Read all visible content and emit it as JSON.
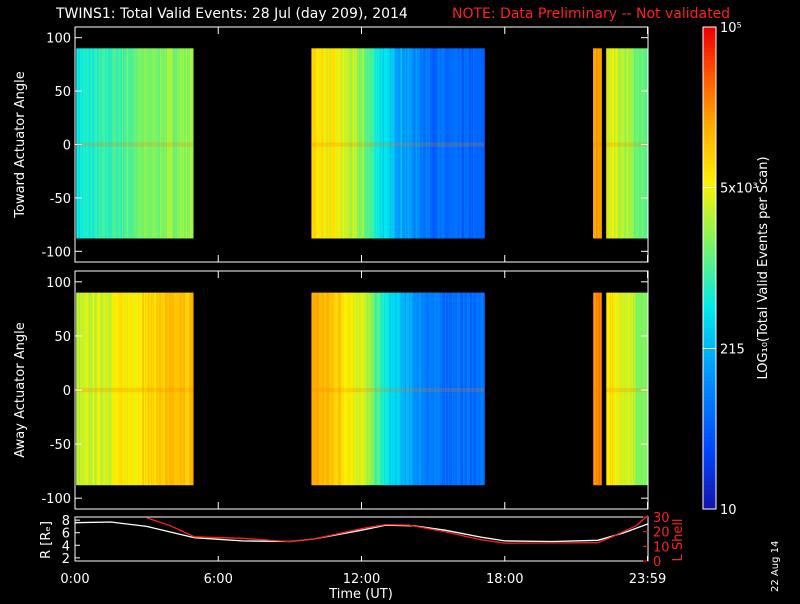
{
  "header": {
    "title": "TWINS1: Total Valid Events: 28 Jul (day 209), 2014",
    "note": "NOTE: Data Preliminary -- Not validated"
  },
  "stamp": "22 Aug 14",
  "chart_data": {
    "type": "heatmap",
    "x_axis": {
      "label": "Time (UT)",
      "range_hours": [
        0,
        24
      ],
      "tick_labels": [
        "0:00",
        "6:00",
        "12:00",
        "18:00",
        "23:59"
      ],
      "tick_values": [
        0,
        6,
        12,
        18,
        23.98
      ]
    },
    "data_segments_hours": [
      [
        0.05,
        4.95
      ],
      [
        9.9,
        17.15
      ],
      [
        21.7,
        22.05
      ],
      [
        22.25,
        24
      ]
    ],
    "panels": [
      {
        "name": "toward",
        "ylabel": "Toward Actuator Angle",
        "ylim": [
          -110,
          110
        ],
        "data_yrange": [
          -88,
          90
        ],
        "yticks": [
          100,
          50,
          0,
          -50,
          -100
        ],
        "ytick_labels": [
          "100",
          "50",
          "0",
          "-50",
          "-100"
        ],
        "level_profile_hours": [
          [
            0,
            0.42
          ],
          [
            1.5,
            0.48
          ],
          [
            3,
            0.55
          ],
          [
            4.95,
            0.58
          ],
          [
            9.9,
            0.72
          ],
          [
            11,
            0.66
          ],
          [
            12,
            0.56
          ],
          [
            13,
            0.38
          ],
          [
            14,
            0.28
          ],
          [
            15,
            0.2
          ],
          [
            16,
            0.18
          ],
          [
            17.15,
            0.17
          ],
          [
            21.7,
            0.8
          ],
          [
            22.05,
            0.8
          ],
          [
            22.25,
            0.68
          ],
          [
            23,
            0.6
          ],
          [
            24,
            0.5
          ]
        ]
      },
      {
        "name": "away",
        "ylabel": "Away Actuator Angle",
        "ylim": [
          -110,
          110
        ],
        "data_yrange": [
          -88,
          90
        ],
        "yticks": [
          100,
          50,
          0,
          -50,
          -100
        ],
        "ytick_labels": [
          "100",
          "50",
          "0",
          "-50",
          "-100"
        ],
        "level_profile_hours": [
          [
            0,
            0.6
          ],
          [
            2,
            0.68
          ],
          [
            3.5,
            0.74
          ],
          [
            4.95,
            0.76
          ],
          [
            9.9,
            0.8
          ],
          [
            11,
            0.74
          ],
          [
            12,
            0.64
          ],
          [
            13,
            0.42
          ],
          [
            14,
            0.3
          ],
          [
            15,
            0.22
          ],
          [
            16,
            0.2
          ],
          [
            17.15,
            0.2
          ],
          [
            21.7,
            0.84
          ],
          [
            22.05,
            0.84
          ],
          [
            22.25,
            0.72
          ],
          [
            23,
            0.64
          ],
          [
            24,
            0.55
          ]
        ]
      }
    ],
    "colorbar": {
      "label": "LOG₁₀(Total Valid Events per Scan)",
      "tick_labels": [
        "10",
        "215",
        "5x10³",
        "10⁵"
      ],
      "tick_levels": [
        0,
        0.333,
        0.667,
        1
      ]
    },
    "orbit_panel": {
      "left_label": "R [Rₑ]",
      "right_label": "L Shell",
      "left_ylim": [
        1.5,
        8.5
      ],
      "right_ylim": [
        0,
        30
      ],
      "left_ticks": [
        "8",
        "6",
        "4",
        "2"
      ],
      "left_tick_values": [
        8,
        6,
        4,
        2
      ],
      "right_ticks": [
        "30",
        "20",
        "10",
        "0"
      ],
      "right_tick_values": [
        30,
        20,
        10,
        0
      ],
      "series": [
        {
          "name": "R",
          "color": "#ffffff",
          "axis": "left",
          "points": [
            [
              0,
              7.6
            ],
            [
              1.5,
              7.7
            ],
            [
              3,
              7
            ],
            [
              5,
              5.2
            ],
            [
              7,
              4.7
            ],
            [
              9,
              4.6
            ],
            [
              10,
              5
            ],
            [
              12,
              6.4
            ],
            [
              13,
              7.2
            ],
            [
              14.2,
              7.1
            ],
            [
              15.5,
              6.4
            ],
            [
              17,
              5.3
            ],
            [
              18,
              4.7
            ],
            [
              20,
              4.6
            ],
            [
              21.9,
              4.8
            ],
            [
              23,
              6
            ],
            [
              24,
              7.4
            ]
          ]
        },
        {
          "name": "L Shell",
          "color": "#ff2020",
          "axis": "right",
          "points": [
            [
              3,
              29.5
            ],
            [
              4,
              24
            ],
            [
              5,
              16.5
            ],
            [
              7,
              15.5
            ],
            [
              9,
              13.2
            ],
            [
              10,
              15
            ],
            [
              12,
              22
            ],
            [
              13,
              24.8
            ],
            [
              14,
              24.5
            ],
            [
              15.5,
              20
            ],
            [
              17,
              14.5
            ],
            [
              18,
              12.2
            ],
            [
              19.5,
              12.3
            ],
            [
              21.9,
              12.5
            ],
            [
              22.5,
              16.5
            ],
            [
              23.5,
              24
            ],
            [
              24,
              31
            ]
          ]
        }
      ]
    }
  }
}
